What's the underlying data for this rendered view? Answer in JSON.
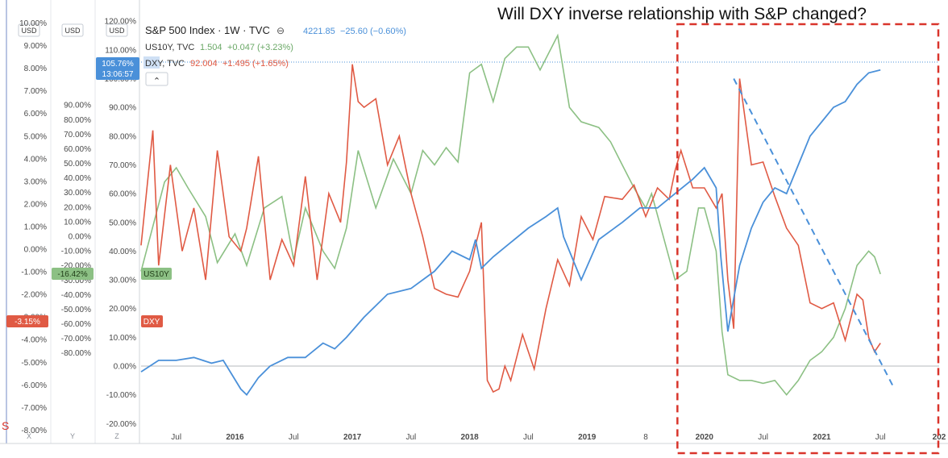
{
  "headline": "Will DXY inverse relationship with S&P changed?",
  "legend": {
    "spx": {
      "name": "S&P 500 Index · 1W · TVC",
      "value": "4221.85",
      "change": "−25.60 (−0.60%)",
      "collapse_glyph": "⊖"
    },
    "us10y": {
      "name": "US10Y, TVC",
      "value": "1.504",
      "change": "+0.047 (+3.23%)"
    },
    "dxy": {
      "name": "DXY, TVC",
      "value": "92.004",
      "change": "+1.495 (+1.65%)"
    },
    "collapse_button_glyph": "⌃"
  },
  "axes": {
    "x_ticks": [
      "Jul",
      "2016",
      "Jul",
      "2017",
      "Jul",
      "2018",
      "Jul",
      "2019",
      "8",
      "2020",
      "Jul",
      "2021",
      "Jul",
      "202"
    ],
    "scale_labels": [
      "X",
      "Y",
      "Z"
    ],
    "axis1": {
      "currency": "USD",
      "ticks": [
        "10.00%",
        "9.00%",
        "8.00%",
        "7.00%",
        "6.00%",
        "5.00%",
        "4.00%",
        "3.00%",
        "2.00%",
        "1.00%",
        "0.00%",
        "-1.00%",
        "-2.00%",
        "-3.00%",
        "-4.00%",
        "-5.00%",
        "-6.00%",
        "-7.00%",
        "-8.00%"
      ],
      "badge": "-3.15%"
    },
    "axis2": {
      "currency": "USD",
      "ticks": [
        "90.00%",
        "80.00%",
        "70.00%",
        "60.00%",
        "50.00%",
        "40.00%",
        "30.00%",
        "20.00%",
        "10.00%",
        "0.00%",
        "-10.00%",
        "-20.00%",
        "-30.00%",
        "-40.00%",
        "-50.00%",
        "-60.00%",
        "-70.00%",
        "-80.00%"
      ],
      "badge": "-16.42%"
    },
    "axis3": {
      "currency": "USD",
      "ticks": [
        "120.00%",
        "110.00%",
        "100.00%",
        "90.00%",
        "80.00%",
        "70.00%",
        "60.00%",
        "50.00%",
        "40.00%",
        "30.00%",
        "20.00%",
        "10.00%",
        "0.00%",
        "-10.00%",
        "-20.00%"
      ],
      "badge_top": "105.76%",
      "badge_bottom": "13:06:57"
    },
    "left_edge_mark": "S"
  },
  "series_labels": {
    "us10y": "US10Y",
    "dxy": "DXY"
  },
  "colors": {
    "spx": "#4a90d9",
    "us10y": "#8cc084",
    "dxy": "#e05a44",
    "frame": "#d9342b",
    "badge_spx": "#4a90d9",
    "badge_us10y": "#8cc084",
    "badge_dxy": "#e05a44"
  },
  "chart_data": {
    "type": "line",
    "title": "S&P 500 Index · 1W · TVC",
    "x_unit": "year (decimal)",
    "xlim": [
      2015.2,
      2022.0
    ],
    "x_ticks": [
      2015.5,
      2016.0,
      2016.5,
      2017.0,
      2017.5,
      2018.0,
      2018.5,
      2019.0,
      2019.5,
      2020.0,
      2020.5,
      2021.0,
      2021.5,
      2022.0
    ],
    "y_unit": "% change (S&P 500 axis)",
    "ylim": [
      -22,
      122
    ],
    "series": [
      {
        "name": "S&P 500 Index",
        "color": "#4a90d9",
        "x": [
          2015.2,
          2015.35,
          2015.5,
          2015.65,
          2015.8,
          2015.9,
          2016.05,
          2016.1,
          2016.2,
          2016.3,
          2016.45,
          2016.6,
          2016.75,
          2016.85,
          2016.95,
          2017.1,
          2017.3,
          2017.5,
          2017.7,
          2017.85,
          2018.0,
          2018.05,
          2018.1,
          2018.2,
          2018.35,
          2018.5,
          2018.65,
          2018.75,
          2018.8,
          2018.95,
          2019.1,
          2019.3,
          2019.45,
          2019.6,
          2019.75,
          2019.9,
          2020.0,
          2020.1,
          2020.14,
          2020.2,
          2020.3,
          2020.4,
          2020.5,
          2020.6,
          2020.7,
          2020.8,
          2020.9,
          2021.0,
          2021.1,
          2021.2,
          2021.3,
          2021.4,
          2021.5
        ],
        "y": [
          -2,
          2,
          2,
          3,
          1,
          2,
          -8,
          -10,
          -4,
          0,
          3,
          3,
          8,
          6,
          10,
          17,
          25,
          27,
          33,
          40,
          37,
          44,
          34,
          38,
          43,
          48,
          52,
          55,
          45,
          30,
          44,
          50,
          55,
          55,
          60,
          65,
          69,
          62,
          38,
          12,
          35,
          48,
          57,
          62,
          60,
          70,
          80,
          85,
          90,
          92,
          98,
          102,
          103
        ]
      },
      {
        "name": "US10Y",
        "color": "#8cc084",
        "x": [
          2015.2,
          2015.4,
          2015.5,
          2015.6,
          2015.75,
          2015.85,
          2016.0,
          2016.1,
          2016.25,
          2016.4,
          2016.5,
          2016.6,
          2016.75,
          2016.85,
          2016.95,
          2017.05,
          2017.2,
          2017.35,
          2017.5,
          2017.6,
          2017.7,
          2017.8,
          2017.9,
          2018.0,
          2018.1,
          2018.2,
          2018.3,
          2018.4,
          2018.5,
          2018.6,
          2018.75,
          2018.85,
          2018.95,
          2019.1,
          2019.2,
          2019.3,
          2019.4,
          2019.5,
          2019.55,
          2019.65,
          2019.75,
          2019.85,
          2019.95,
          2020.0,
          2020.1,
          2020.15,
          2020.2,
          2020.3,
          2020.4,
          2020.5,
          2020.6,
          2020.7,
          2020.8,
          2020.9,
          2021.0,
          2021.1,
          2021.2,
          2021.3,
          2021.4,
          2021.45,
          2021.5
        ],
        "y": [
          33,
          64,
          69,
          62,
          52,
          36,
          46,
          35,
          55,
          59,
          37,
          55,
          40,
          34,
          48,
          75,
          55,
          72,
          60,
          75,
          70,
          76,
          71,
          102,
          105,
          92,
          107,
          111,
          111,
          103,
          115,
          90,
          85,
          83,
          78,
          70,
          62,
          55,
          60,
          45,
          30,
          33,
          55,
          55,
          40,
          12,
          -3,
          -5,
          -5,
          -6,
          -5,
          -10,
          -5,
          2,
          5,
          10,
          20,
          35,
          40,
          38,
          32
        ]
      },
      {
        "name": "DXY",
        "color": "#e05a44",
        "x": [
          2015.2,
          2015.3,
          2015.35,
          2015.45,
          2015.55,
          2015.65,
          2015.75,
          2015.85,
          2015.95,
          2016.05,
          2016.1,
          2016.2,
          2016.3,
          2016.4,
          2016.5,
          2016.6,
          2016.7,
          2016.8,
          2016.9,
          2016.95,
          2017.0,
          2017.05,
          2017.1,
          2017.2,
          2017.3,
          2017.4,
          2017.5,
          2017.6,
          2017.7,
          2017.8,
          2017.9,
          2018.0,
          2018.05,
          2018.1,
          2018.15,
          2018.2,
          2018.25,
          2018.3,
          2018.35,
          2018.45,
          2018.55,
          2018.65,
          2018.75,
          2018.85,
          2018.95,
          2019.05,
          2019.15,
          2019.3,
          2019.4,
          2019.5,
          2019.6,
          2019.7,
          2019.75,
          2019.8,
          2019.9,
          2020.0,
          2020.1,
          2020.15,
          2020.2,
          2020.25,
          2020.3,
          2020.4,
          2020.5,
          2020.6,
          2020.7,
          2020.8,
          2020.9,
          2021.0,
          2021.1,
          2021.2,
          2021.3,
          2021.35,
          2021.4,
          2021.45,
          2021.5
        ],
        "y": [
          42,
          82,
          35,
          70,
          40,
          55,
          30,
          75,
          45,
          40,
          48,
          73,
          30,
          44,
          35,
          66,
          30,
          60,
          50,
          71,
          105,
          92,
          90,
          93,
          70,
          80,
          60,
          45,
          27,
          25,
          24,
          33,
          42,
          50,
          -5,
          -9,
          -8,
          0,
          -5,
          11,
          -1,
          20,
          37,
          28,
          52,
          44,
          59,
          58,
          63,
          52,
          62,
          58,
          68,
          75,
          62,
          62,
          55,
          60,
          30,
          13,
          100,
          70,
          71,
          59,
          48,
          42,
          22,
          20,
          22,
          9,
          25,
          23,
          10,
          5,
          8
        ]
      }
    ],
    "annotations": [
      {
        "type": "trendline",
        "style": "dashed",
        "color": "#4a90d9",
        "from": [
          2020.25,
          100
        ],
        "to": [
          2021.62,
          -8
        ]
      },
      {
        "type": "highlight-frame",
        "style": "dashed",
        "color": "#d9342b",
        "x_from": 2019.77,
        "x_to": 2022.0
      }
    ]
  }
}
